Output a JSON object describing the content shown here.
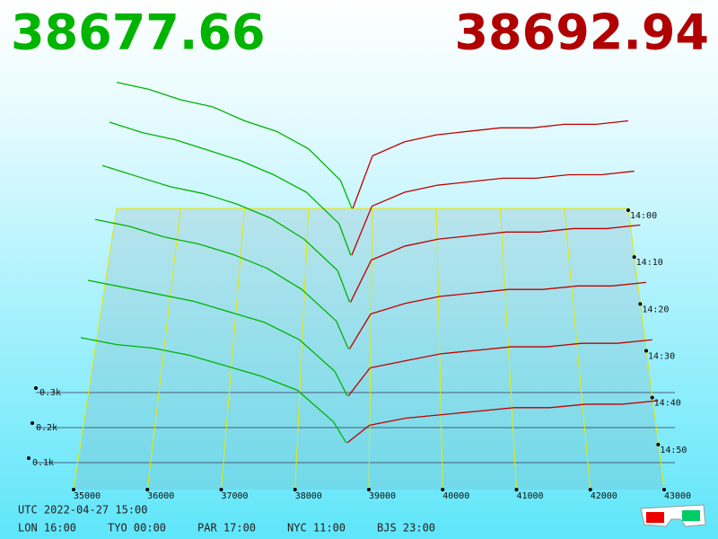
{
  "chart_data": {
    "type": "depth3d",
    "bid": 38677.66,
    "ask": 38692.94,
    "bid_color": "#00b400",
    "ask_color": "#c00000",
    "x_bids": [
      35000,
      35500,
      36000,
      36500,
      37000,
      37500,
      38000,
      38500
    ],
    "x_asks": [
      39000,
      39500,
      40000,
      40500,
      41000,
      41500,
      42000,
      42500,
      43000
    ],
    "xlim": [
      35000,
      43000
    ],
    "xticks": [
      35000,
      36000,
      37000,
      38000,
      39000,
      40000,
      41000,
      42000,
      43000
    ],
    "ylim": [
      0,
      1
    ],
    "yticks": [
      {
        "value": 0.1,
        "label": "0.1k"
      },
      {
        "value": 0.2,
        "label": "0.2k"
      },
      {
        "value": 0.3,
        "label": "0.3k"
      }
    ],
    "slices": [
      {
        "time": "14:00",
        "bids": [
          0.36,
          0.34,
          0.31,
          0.29,
          0.25,
          0.22,
          0.17,
          0.08
        ],
        "asks": [
          0.15,
          0.19,
          0.21,
          0.22,
          0.23,
          0.23,
          0.24,
          0.24,
          0.25
        ]
      },
      {
        "time": "14:10",
        "bids": [
          0.38,
          0.35,
          0.33,
          0.3,
          0.27,
          0.23,
          0.18,
          0.09
        ],
        "asks": [
          0.14,
          0.18,
          0.2,
          0.21,
          0.22,
          0.22,
          0.23,
          0.23,
          0.24
        ]
      },
      {
        "time": "14:20",
        "bids": [
          0.39,
          0.36,
          0.33,
          0.31,
          0.28,
          0.24,
          0.18,
          0.09
        ],
        "asks": [
          0.12,
          0.16,
          0.18,
          0.19,
          0.2,
          0.2,
          0.21,
          0.21,
          0.22
        ]
      },
      {
        "time": "14:30",
        "bids": [
          0.37,
          0.35,
          0.32,
          0.3,
          0.27,
          0.23,
          0.17,
          0.08
        ],
        "asks": [
          0.1,
          0.13,
          0.15,
          0.16,
          0.17,
          0.17,
          0.18,
          0.18,
          0.19
        ]
      },
      {
        "time": "14:40",
        "bids": [
          0.33,
          0.31,
          0.29,
          0.27,
          0.24,
          0.21,
          0.16,
          0.07
        ],
        "asks": [
          0.08,
          0.1,
          0.12,
          0.13,
          0.14,
          0.14,
          0.15,
          0.15,
          0.16
        ]
      },
      {
        "time": "14:50",
        "bids": [
          0.3,
          0.28,
          0.27,
          0.25,
          0.22,
          0.19,
          0.15,
          0.06
        ],
        "asks": [
          0.05,
          0.07,
          0.08,
          0.09,
          0.1,
          0.1,
          0.11,
          0.11,
          0.12
        ]
      }
    ]
  },
  "footer": {
    "utc": "UTC 2022-04-27 15:00",
    "clocks": [
      "LON 16:00",
      "TYO 00:00",
      "PAR 17:00",
      "NYC 11:00",
      "BJS 23:00"
    ]
  }
}
